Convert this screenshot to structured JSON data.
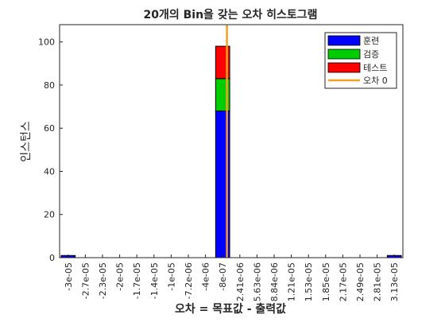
{
  "chart_data": {
    "type": "bar",
    "title": "20개의 Bin을 갖는 오차 히스토그램",
    "xlabel": "오차 = 목표값 - 출력값",
    "ylabel": "인스턴스",
    "ylim": [
      0,
      108
    ],
    "yticks": [
      0,
      20,
      40,
      60,
      80,
      100
    ],
    "stacked": true,
    "grid": false,
    "legend_position": "top-right",
    "categories": [
      "-3e-05",
      "-2.7e-05",
      "-2.3e-05",
      "-2e-05",
      "-1.7e-05",
      "-1.4e-05",
      "-1e-05",
      "-7.2e-06",
      "-4e-06",
      "-8e-07",
      "2.41e-06",
      "5.63e-06",
      "8.84e-06",
      "1.21e-05",
      "1.53e-05",
      "1.85e-05",
      "2.17e-05",
      "2.49e-05",
      "2.81e-05",
      "3.13e-05"
    ],
    "series": [
      {
        "name": "훈련",
        "color": "#0000ff",
        "values": [
          1,
          0,
          0,
          0,
          0,
          0,
          0,
          0,
          0,
          68,
          0,
          0,
          0,
          0,
          0,
          0,
          0,
          0,
          0,
          1
        ]
      },
      {
        "name": "검증",
        "color": "#00cc00",
        "values": [
          0,
          0,
          0,
          0,
          0,
          0,
          0,
          0,
          0,
          15,
          0,
          0,
          0,
          0,
          0,
          0,
          0,
          0,
          0,
          0
        ]
      },
      {
        "name": "테스트",
        "color": "#ff0000",
        "values": [
          0,
          0,
          0,
          0,
          0,
          0,
          0,
          0,
          0,
          15,
          0,
          0,
          0,
          0,
          0,
          0,
          0,
          0,
          0,
          0
        ]
      }
    ],
    "zero_error_line": {
      "name": "오차 0",
      "color": "#f5a021",
      "x": 0
    }
  }
}
